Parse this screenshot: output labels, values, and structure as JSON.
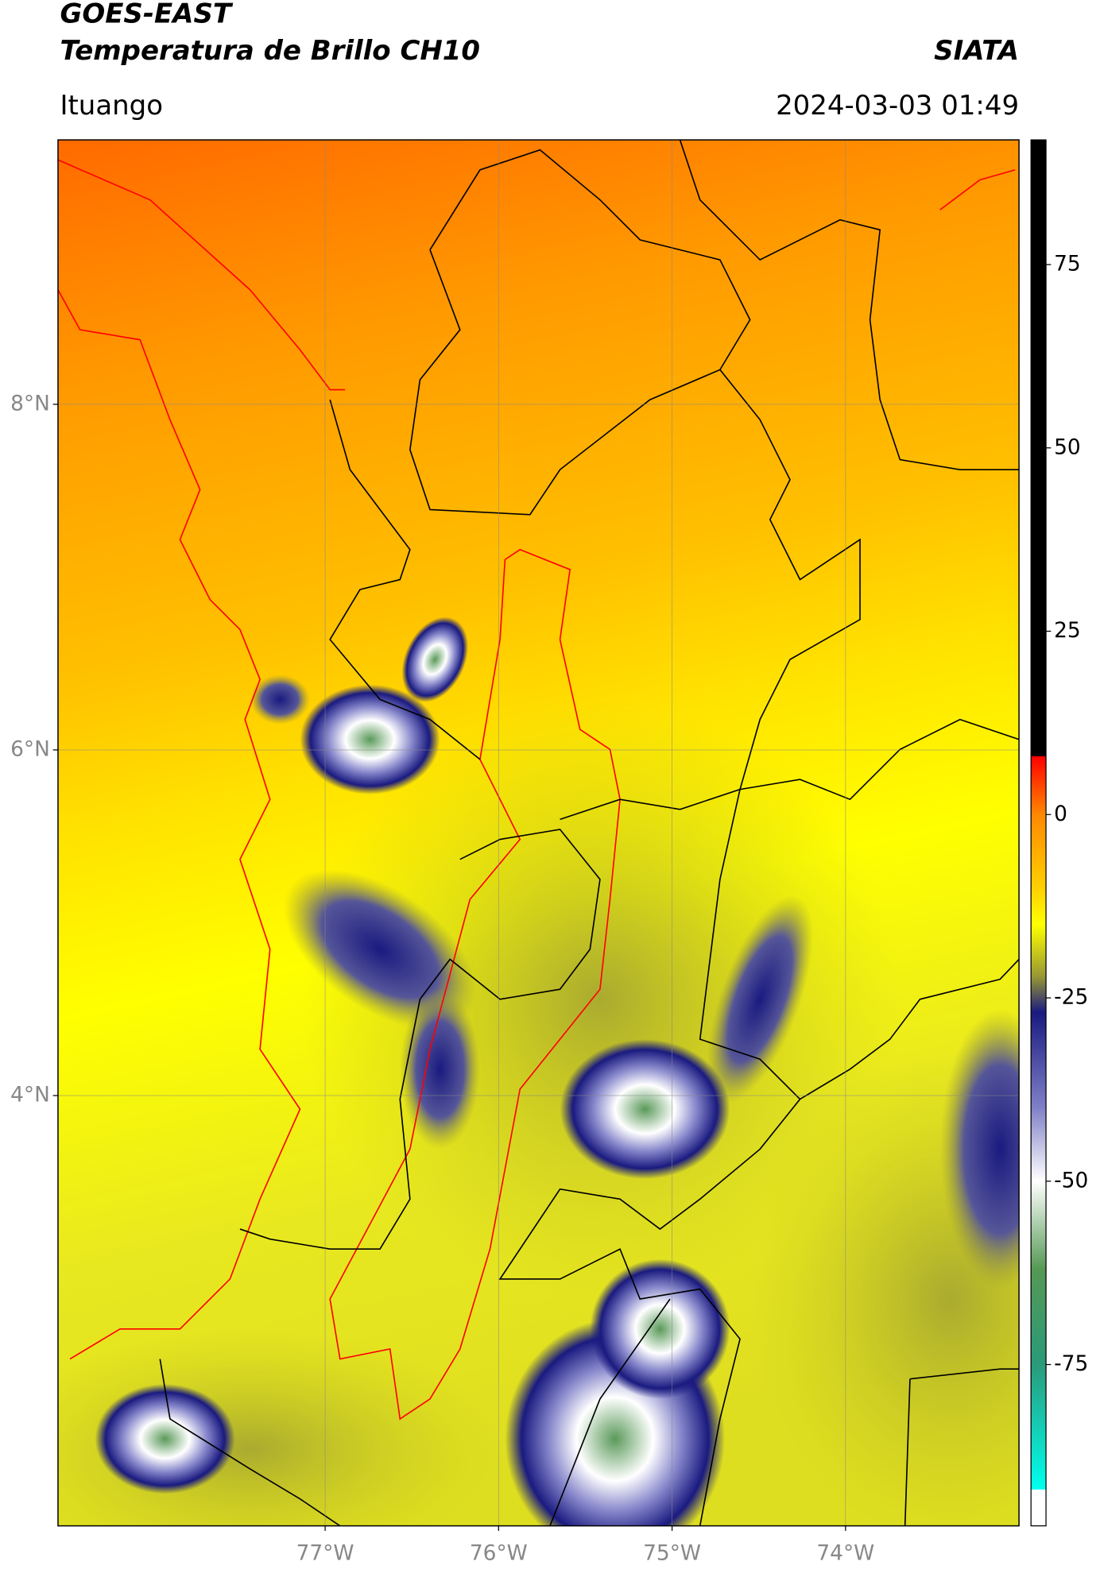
{
  "header": {
    "source": "GOES-EAST",
    "title": "Temperatura de Brillo CH10",
    "organization": "SIATA",
    "location": "Ituango",
    "datetime": "2024-03-03 01:49"
  },
  "map": {
    "lon_range": [
      -78.54,
      -73.0
    ],
    "lat_range": [
      1.51,
      9.53
    ],
    "lat_ticks": [
      {
        "value": 8,
        "label": "8°N"
      },
      {
        "value": 6,
        "label": "6°N"
      },
      {
        "value": 4,
        "label": "4°N"
      }
    ],
    "lon_ticks": [
      {
        "value": -77,
        "label": "77°W"
      },
      {
        "value": -76,
        "label": "76°W"
      },
      {
        "value": -75,
        "label": "75°W"
      },
      {
        "value": -74,
        "label": "74°W"
      }
    ],
    "grid": true
  },
  "colorbar": {
    "range": [
      -97,
      92
    ],
    "ticks": [
      75,
      50,
      25,
      0,
      -25,
      -50,
      -75
    ],
    "colormap": [
      {
        "value": 92,
        "color": "#000000"
      },
      {
        "value": 8,
        "color": "#000000"
      },
      {
        "value": 7.9,
        "color": "#ff0000"
      },
      {
        "value": 0,
        "color": "#ff8800"
      },
      {
        "value": -10,
        "color": "#ffd000"
      },
      {
        "value": -15,
        "color": "#ffff00"
      },
      {
        "value": -22,
        "color": "#999933"
      },
      {
        "value": -27,
        "color": "#1a1a80"
      },
      {
        "value": -40,
        "color": "#8080c8"
      },
      {
        "value": -50,
        "color": "#ffffff"
      },
      {
        "value": -62,
        "color": "#559955"
      },
      {
        "value": -75,
        "color": "#2a9a7a"
      },
      {
        "value": -92,
        "color": "#00ffee"
      },
      {
        "value": -92.1,
        "color": "#ffffff"
      },
      {
        "value": -97,
        "color": "#ffffff"
      }
    ]
  }
}
